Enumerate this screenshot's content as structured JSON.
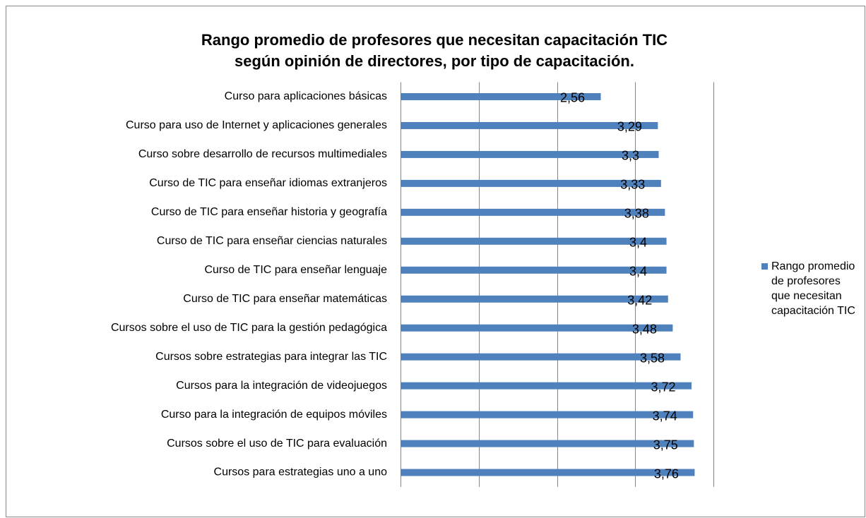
{
  "chart_data": {
    "type": "barh",
    "title": "Rango promedio de profesores que necesitan capacitación TIC según opinión de directores, por tipo de capacitación.",
    "categories": [
      "Curso para aplicaciones básicas",
      "Curso para uso de Internet y aplicaciones generales",
      "Curso sobre desarrollo de recursos multimediales",
      "Curso de TIC para enseñar idiomas extranjeros",
      "Curso de TIC para enseñar historia y geografía",
      "Curso de TIC para enseñar ciencias naturales",
      "Curso de TIC para enseñar lenguaje",
      "Curso de TIC para enseñar matemáticas",
      "Cursos sobre el uso de TIC para la gestión pedagógica",
      "Cursos sobre estrategias para integrar las TIC",
      "Cursos para la integración de videojuegos",
      "Curso para la integración de equipos móviles",
      "Cursos sobre el uso de TIC para evaluación",
      "Cursos para estrategias uno a uno"
    ],
    "series": [
      {
        "name": "Rango promedio de profesores que necesitan capacitación TIC",
        "color": "#4f81bd",
        "values": [
          2.56,
          3.29,
          3.3,
          3.33,
          3.38,
          3.4,
          3.4,
          3.42,
          3.48,
          3.58,
          3.72,
          3.74,
          3.75,
          3.76
        ],
        "value_labels": [
          "2,56",
          "3,29",
          "3,3",
          "3,33",
          "3,38",
          "3,4",
          "3,4",
          "3,42",
          "3,48",
          "3,58",
          "3,72",
          "3,74",
          "3,75",
          "3,76"
        ]
      }
    ],
    "xlim": [
      0,
      4
    ],
    "xticks": [
      0,
      1,
      2,
      3,
      4
    ],
    "grid": true,
    "legend": "right"
  }
}
